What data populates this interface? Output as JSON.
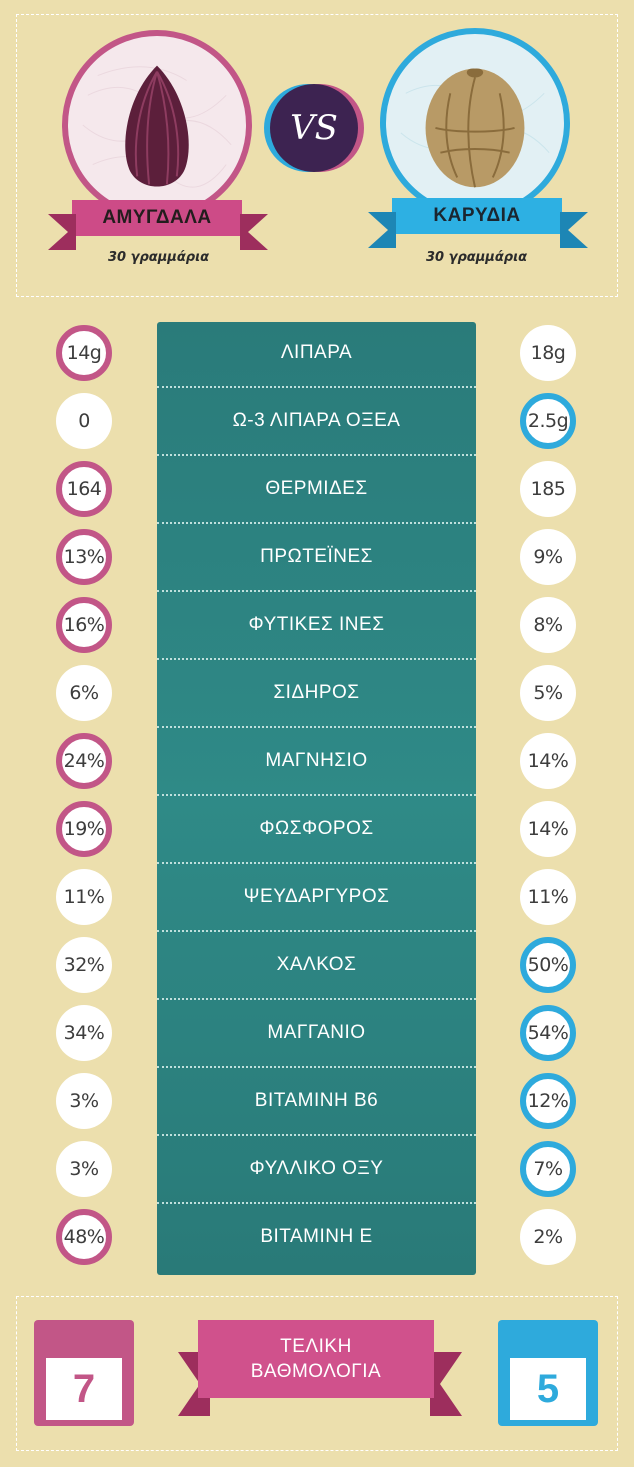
{
  "header": {
    "left_name": "ΑΜΥΓΔΑΛΑ",
    "left_sub": "30 γραμμάρια",
    "right_name": "ΚΑΡΥΔΙΑ",
    "right_sub": "30 γραμμάρια",
    "vs": "VS"
  },
  "colors": {
    "left": "#c25687",
    "right": "#2eaadc",
    "table": "#2a7b7a",
    "background": "#ecdfad"
  },
  "rows": [
    {
      "label": "ΛΙΠΑΡΑ",
      "left": "14g",
      "right": "18g",
      "winner": "left"
    },
    {
      "label": "Ω-3 ΛΙΠΑΡΑ ΟΞΕΑ",
      "left": "0",
      "right": "2.5g",
      "winner": "right"
    },
    {
      "label": "ΘΕΡΜΙΔΕΣ",
      "left": "164",
      "right": "185",
      "winner": "left"
    },
    {
      "label": "ΠΡΩΤΕΪΝΕΣ",
      "left": "13%",
      "right": "9%",
      "winner": "left"
    },
    {
      "label": "ΦΥΤΙΚΕΣ ΙΝΕΣ",
      "left": "16%",
      "right": "8%",
      "winner": "left"
    },
    {
      "label": "ΣΙΔΗΡΟΣ",
      "left": "6%",
      "right": "5%",
      "winner": "none"
    },
    {
      "label": "ΜΑΓΝΗΣΙΟ",
      "left": "24%",
      "right": "14%",
      "winner": "left"
    },
    {
      "label": "ΦΩΣΦΟΡΟΣ",
      "left": "19%",
      "right": "14%",
      "winner": "left"
    },
    {
      "label": "ΨΕΥΔΑΡΓΥΡΟΣ",
      "left": "11%",
      "right": "11%",
      "winner": "none"
    },
    {
      "label": "ΧΑΛΚΟΣ",
      "left": "32%",
      "right": "50%",
      "winner": "right"
    },
    {
      "label": "ΜΑΓΓΑΝΙΟ",
      "left": "34%",
      "right": "54%",
      "winner": "right"
    },
    {
      "label": "ΒΙΤΑΜΙΝΗ Β6",
      "left": "3%",
      "right": "12%",
      "winner": "right"
    },
    {
      "label": "ΦΥΛΛΙΚΟ ΟΞΥ",
      "left": "3%",
      "right": "7%",
      "winner": "right"
    },
    {
      "label": "ΒΙΤΑΜΙΝΗ Ε",
      "left": "48%",
      "right": "2%",
      "winner": "left"
    }
  ],
  "footer": {
    "title_line1": "ΤΕΛΙΚΗ",
    "title_line2": "ΒΑΘΜΟΛΟΓΙΑ",
    "left_score": "7",
    "right_score": "5"
  }
}
